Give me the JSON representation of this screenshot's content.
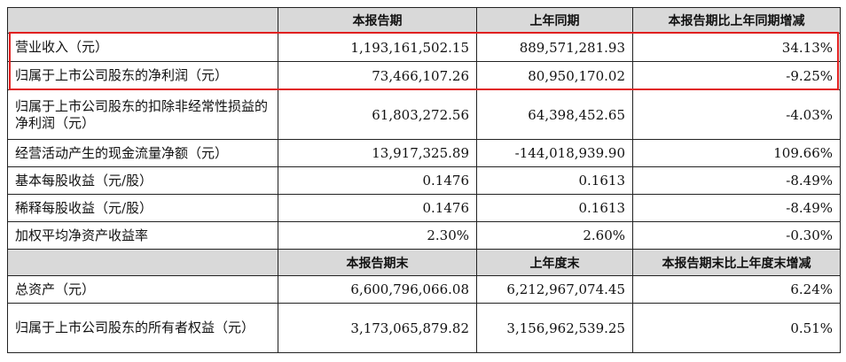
{
  "header1": [
    "",
    "本报告期",
    "上年同期",
    "本报告期比上年同期增减"
  ],
  "rows1": [
    {
      "label": "营业收入（元）",
      "current": "1,193,161,502.15",
      "prior": "889,571,281.93",
      "change": "34.13%"
    },
    {
      "label": "归属于上市公司股东的净利润（元）",
      "current": "73,466,107.26",
      "prior": "80,950,170.02",
      "change": "-9.25%"
    },
    {
      "label": "归属于上市公司股东的扣除非经常性损益的净利润（元）",
      "current": "61,803,272.56",
      "prior": "64,398,452.65",
      "change": "-4.03%"
    },
    {
      "label": "经营活动产生的现金流量净额（元）",
      "current": "13,917,325.89",
      "prior": "-144,018,939.90",
      "change": "109.66%"
    },
    {
      "label": "基本每股收益（元/股）",
      "current": "0.1476",
      "prior": "0.1613",
      "change": "-8.49%"
    },
    {
      "label": "稀释每股收益（元/股）",
      "current": "0.1476",
      "prior": "0.1613",
      "change": "-8.49%"
    },
    {
      "label": "加权平均净资产收益率",
      "current": "2.30%",
      "prior": "2.60%",
      "change": "-0.30%"
    }
  ],
  "header2": [
    "",
    "本报告期末",
    "上年度末",
    "本报告期末比上年度末增减"
  ],
  "rows2": [
    {
      "label": "总资产（元）",
      "current": "6,600,796,066.08",
      "prior": "6,212,967,074.45",
      "change": "6.24%"
    },
    {
      "label": "归属于上市公司股东的所有者权益（元）",
      "current": "3,173,065,879.82",
      "prior": "3,156,962,539.25",
      "change": "0.51%"
    }
  ],
  "highlight_color": "#e02020",
  "header_bg": "#d9d9d9"
}
